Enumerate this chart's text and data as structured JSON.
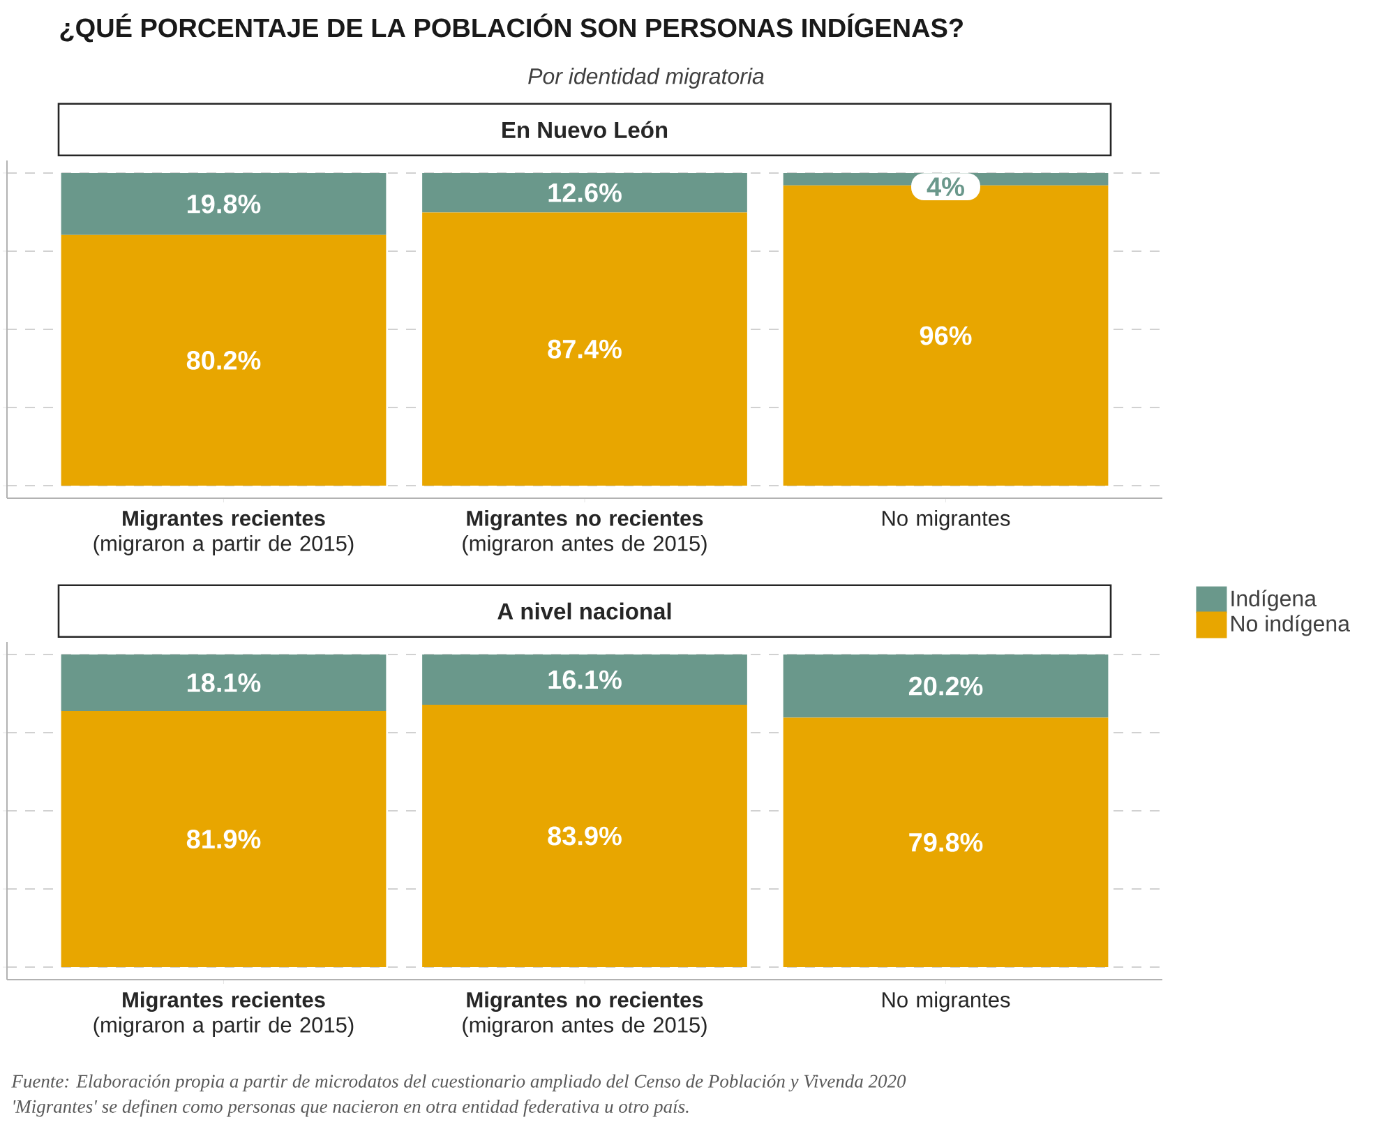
{
  "chart_data": [
    {
      "type": "bar",
      "stacked": true,
      "title": "En Nuevo León",
      "annotations": [
        "¿QUÉ PORCENTAJE DE LA POBLACIÓN SON PERSONAS INDÍGENAS?",
        "Por identidad migratoria"
      ],
      "categories": [
        "**Migrantes recientes** (migraron a partir de 2015)",
        "**Migrantes no recientes** (migraron antes de 2015)",
        "No migrantes"
      ],
      "series": [
        {
          "color": "#e8a600",
          "values": [
            80.2,
            87.4,
            96
          ],
          "value_labels": [
            "80.2%",
            "87.4%",
            "96%"
          ]
        },
        {
          "color": "#6a988b",
          "values": [
            19.8,
            12.6,
            4
          ],
          "value_labels": [
            "19.8%",
            "12.6%",
            "4%"
          ]
        }
      ],
      "grid": "y",
      "tick_labels": "x"
    },
    {
      "type": "bar",
      "stacked": true,
      "title": "A nivel nacional",
      "annotations": [
        "Fuente: Elaboración propia a partir de microdatos del cuestionario ampliado del Censo de Población y Vivenda 2020",
        "'Migrantes' se definen como personas que nacieron en otra entidad federativa u otro país."
      ],
      "categories": [
        "**Migrantes recientes** (migraron a partir de 2015)",
        "**Migrantes no recientes** (migraron antes de 2015)",
        "No migrantes"
      ],
      "series": [
        {
          "name": "No indígena",
          "color": "#e8a600",
          "values": [
            81.9,
            83.9,
            79.8
          ],
          "value_labels": [
            "81.9%",
            "83.9%",
            "79.8%"
          ]
        },
        {
          "name": "Indígena",
          "color": "#6a988b",
          "values": [
            18.1,
            16.1,
            20.2
          ],
          "value_labels": [
            "18.1%",
            "16.1%",
            "20.2%"
          ]
        }
      ],
      "grid": "y",
      "tick_labels": "x",
      "legend": "right"
    }
  ]
}
